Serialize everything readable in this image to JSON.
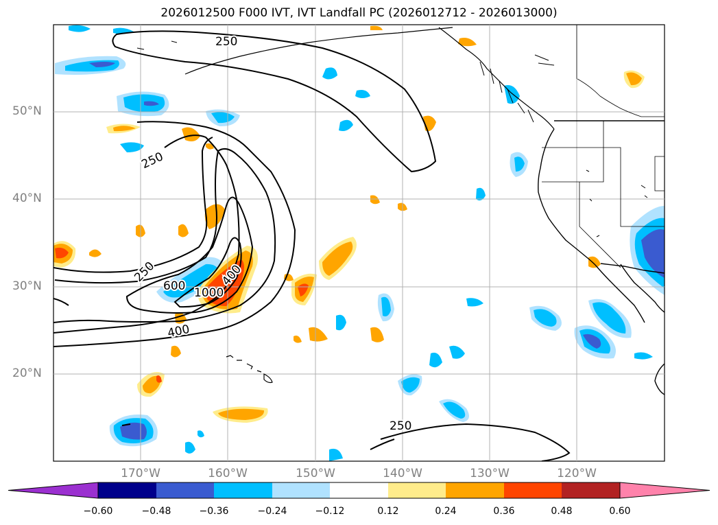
{
  "title": "2026012500 F000 IVT, IVT Landfall PC (2026012712 - 2026013000)",
  "lat_labels": [
    "50°N",
    "40°N",
    "30°N",
    "20°N"
  ],
  "lon_labels": [
    "170°W",
    "160°W",
    "150°W",
    "140°W",
    "130°W",
    "120°W"
  ],
  "contour_labels": [
    "250",
    "250",
    "250",
    "600",
    "1000",
    "400",
    "400",
    "250"
  ],
  "colorbar": {
    "ticks": [
      "−0.60",
      "−0.48",
      "−0.36",
      "−0.24",
      "−0.12",
      "0.12",
      "0.24",
      "0.36",
      "0.48",
      "0.60"
    ],
    "colors": [
      "#9b30d0",
      "#00008b",
      "#3a5bd0",
      "#00bfff",
      "#b0e2ff",
      "#ffffff",
      "#ffec8b",
      "#ffa500",
      "#ff4500",
      "#b22222",
      "#ff82ab"
    ]
  }
}
